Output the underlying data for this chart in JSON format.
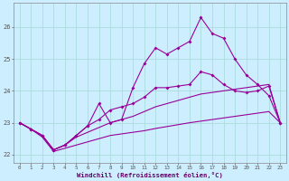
{
  "xlabel": "Windchill (Refroidissement éolien,°C)",
  "background_color": "#cceeff",
  "grid_color": "#aadddd",
  "line_color": "#990099",
  "x_values": [
    0,
    1,
    2,
    3,
    4,
    5,
    6,
    7,
    8,
    9,
    10,
    11,
    12,
    13,
    14,
    15,
    16,
    17,
    18,
    19,
    20,
    21,
    22,
    23
  ],
  "series_top": [
    23.0,
    22.8,
    22.6,
    22.15,
    22.3,
    22.6,
    22.9,
    23.6,
    23.0,
    23.1,
    24.1,
    24.85,
    25.35,
    25.15,
    25.35,
    25.55,
    26.3,
    25.8,
    25.65,
    25.0,
    24.5,
    24.2,
    23.85,
    23.0
  ],
  "series_mid": [
    23.0,
    22.8,
    22.6,
    22.15,
    22.3,
    22.6,
    22.9,
    23.1,
    23.4,
    23.5,
    23.6,
    23.8,
    24.1,
    24.1,
    24.15,
    24.2,
    24.6,
    24.5,
    24.2,
    24.0,
    23.95,
    24.0,
    24.15,
    23.0
  ],
  "series_line1": [
    23.0,
    22.8,
    22.6,
    22.15,
    22.3,
    22.55,
    22.7,
    22.85,
    23.0,
    23.1,
    23.2,
    23.35,
    23.5,
    23.6,
    23.7,
    23.8,
    23.9,
    23.95,
    24.0,
    24.05,
    24.1,
    24.15,
    24.2,
    23.0
  ],
  "series_line2": [
    23.0,
    22.8,
    22.55,
    22.1,
    22.2,
    22.3,
    22.4,
    22.5,
    22.6,
    22.65,
    22.7,
    22.75,
    22.82,
    22.88,
    22.94,
    23.0,
    23.05,
    23.1,
    23.15,
    23.2,
    23.25,
    23.3,
    23.35,
    23.0
  ],
  "ylim": [
    21.75,
    26.75
  ],
  "xlim": [
    -0.5,
    23.5
  ],
  "yticks": [
    22,
    23,
    24,
    25,
    26
  ],
  "xticks": [
    0,
    1,
    2,
    3,
    4,
    5,
    6,
    7,
    8,
    9,
    10,
    11,
    12,
    13,
    14,
    15,
    16,
    17,
    18,
    19,
    20,
    21,
    22,
    23
  ]
}
